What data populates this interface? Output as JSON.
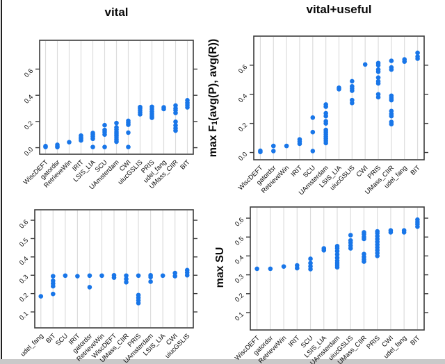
{
  "colors": {
    "dot": "#1976e8",
    "grid": "#dcdcdc",
    "frame": "#3b3b3b",
    "text": "#0a0a0a"
  },
  "chart_data": [
    {
      "panel": "top-left",
      "type": "scatter",
      "title": "vital",
      "ylabel": "",
      "ytick_labels": [
        "0.0",
        "0.2",
        "0.4",
        "0.6"
      ],
      "ytick_values": [
        0.0,
        0.2,
        0.4,
        0.6
      ],
      "ylim": [
        -0.05,
        0.82
      ],
      "grid": "vertical",
      "categories": [
        "WiscDEFT",
        "gatordsr",
        "RetrieveWin",
        "IRIT",
        "LSIS_LIA",
        "SCU",
        "UAmsterdam",
        "CWI",
        "uiucGSLIS",
        "PRIS",
        "udel_fang",
        "UMass_CIIR",
        "BIT"
      ],
      "values": [
        [
          0.005,
          0.012
        ],
        [
          0.004,
          0.012,
          0.022
        ],
        [
          0.042
        ],
        [
          0.055,
          0.068,
          0.08,
          0.092
        ],
        [
          0.005,
          0.068,
          0.085,
          0.1,
          0.112
        ],
        [
          0.005,
          0.1,
          0.12,
          0.135,
          0.172
        ],
        [
          0.045,
          0.06,
          0.075,
          0.09,
          0.105,
          0.12,
          0.138,
          0.155,
          0.188
        ],
        [
          0.005,
          0.115,
          0.175,
          0.19,
          0.205
        ],
        [
          0.255,
          0.27,
          0.285,
          0.3,
          0.31
        ],
        [
          0.228,
          0.242,
          0.258,
          0.275,
          0.295,
          0.312
        ],
        [
          0.295,
          0.308
        ],
        [
          0.13,
          0.148,
          0.17,
          0.198,
          0.265,
          0.285,
          0.3,
          0.322
        ],
        [
          0.308,
          0.325,
          0.342,
          0.362
        ]
      ]
    },
    {
      "panel": "top-right",
      "type": "scatter",
      "title": "vital+useful",
      "ylabel": "max F₁(avg(P), avg(R))",
      "ylabel_parts": {
        "pre": "max F",
        "sub": "1",
        "post": "(avg(P), avg(R))"
      },
      "ytick_labels": [
        "0.0",
        "0.2",
        "0.4",
        "0.6"
      ],
      "ytick_values": [
        0.0,
        0.2,
        0.4,
        0.6
      ],
      "ylim": [
        -0.05,
        0.8
      ],
      "grid": "vertical",
      "categories": [
        "WiscDEFT",
        "gatordsr",
        "RetrieveWin",
        "IRIT",
        "SCU",
        "UAmsterdam",
        "LSIS_LIA",
        "uiucGSLIS",
        "CWI",
        "PRIS",
        "UMass_CIIR",
        "udel_fang",
        "BIT"
      ],
      "values": [
        [
          0.004,
          0.012
        ],
        [
          0.01,
          0.045
        ],
        [
          0.045
        ],
        [
          0.06,
          0.075,
          0.09
        ],
        [
          0.01,
          0.14,
          0.24
        ],
        [
          0.065,
          0.08,
          0.095,
          0.11,
          0.125,
          0.14,
          0.155,
          0.2,
          0.215,
          0.25,
          0.27,
          0.315,
          0.33
        ],
        [
          0.435,
          0.445
        ],
        [
          0.34,
          0.36,
          0.425,
          0.44,
          0.455,
          0.49
        ],
        [
          0.605
        ],
        [
          0.38,
          0.4,
          0.475,
          0.49,
          0.515,
          0.555,
          0.57,
          0.6,
          0.615
        ],
        [
          0.195,
          0.21,
          0.25,
          0.265,
          0.285,
          0.36,
          0.375,
          0.39,
          0.57,
          0.585,
          0.63
        ],
        [
          0.625,
          0.64
        ],
        [
          0.645,
          0.66,
          0.685
        ]
      ]
    },
    {
      "panel": "bottom-left",
      "type": "scatter",
      "title": "",
      "ylabel": "",
      "ytick_labels": [
        "0.1",
        "0.2",
        "0.3",
        "0.4",
        "0.5",
        "0.6"
      ],
      "ytick_values": [
        0.1,
        0.2,
        0.3,
        0.4,
        0.5,
        0.6
      ],
      "ylim": [
        0.013,
        0.657
      ],
      "grid": "vertical",
      "categories": [
        "udel_fang",
        "BIT",
        "SCU",
        "IRIT",
        "gatordsr",
        "RetrieveWin",
        "WiscDEFT",
        "UMass_CIIR",
        "PRIS",
        "UAmsterdam",
        "LSIS_LIA",
        "CWI",
        "uiucGSLIS"
      ],
      "values": [
        [
          0.185
        ],
        [
          0.198,
          0.24,
          0.255,
          0.27,
          0.295
        ],
        [
          0.298
        ],
        [
          0.295
        ],
        [
          0.235,
          0.298
        ],
        [
          0.298
        ],
        [
          0.287,
          0.3
        ],
        [
          0.262,
          0.28,
          0.298
        ],
        [
          0.148,
          0.163,
          0.178,
          0.192,
          0.298
        ],
        [
          0.265,
          0.29,
          0.3
        ],
        [
          0.298
        ],
        [
          0.295,
          0.312
        ],
        [
          0.3,
          0.315,
          0.328
        ]
      ]
    },
    {
      "panel": "bottom-right",
      "type": "scatter",
      "title": "",
      "ylabel": "max SU",
      "ytick_labels": [
        "0.1",
        "0.2",
        "0.3",
        "0.4",
        "0.5",
        "0.6"
      ],
      "ytick_values": [
        0.1,
        0.2,
        0.3,
        0.4,
        0.5,
        0.6
      ],
      "ylim": [
        0.008,
        0.659
      ],
      "grid": "vertical",
      "categories": [
        "WiscDEFT",
        "gatordsr",
        "RetrieveWin",
        "IRIT",
        "SCU",
        "LSIS_LIA",
        "UAmsterdam",
        "uiucGSLIS",
        "UMass_CIIR",
        "PRIS",
        "CWI",
        "udel_fang",
        "BIT"
      ],
      "values": [
        [
          0.332
        ],
        [
          0.332
        ],
        [
          0.344
        ],
        [
          0.335,
          0.35
        ],
        [
          0.33,
          0.345,
          0.362,
          0.385
        ],
        [
          0.43,
          0.44
        ],
        [
          0.34,
          0.352,
          0.363,
          0.375,
          0.39,
          0.408,
          0.425,
          0.44,
          0.452
        ],
        [
          0.44,
          0.455,
          0.47,
          0.482,
          0.51
        ],
        [
          0.37,
          0.382,
          0.395,
          0.41,
          0.49,
          0.5,
          0.515,
          0.525
        ],
        [
          0.4,
          0.415,
          0.43,
          0.445,
          0.46,
          0.475,
          0.49,
          0.505,
          0.52,
          0.53
        ],
        [
          0.525,
          0.535
        ],
        [
          0.525,
          0.535
        ],
        [
          0.555,
          0.568,
          0.58,
          0.592
        ]
      ]
    }
  ]
}
